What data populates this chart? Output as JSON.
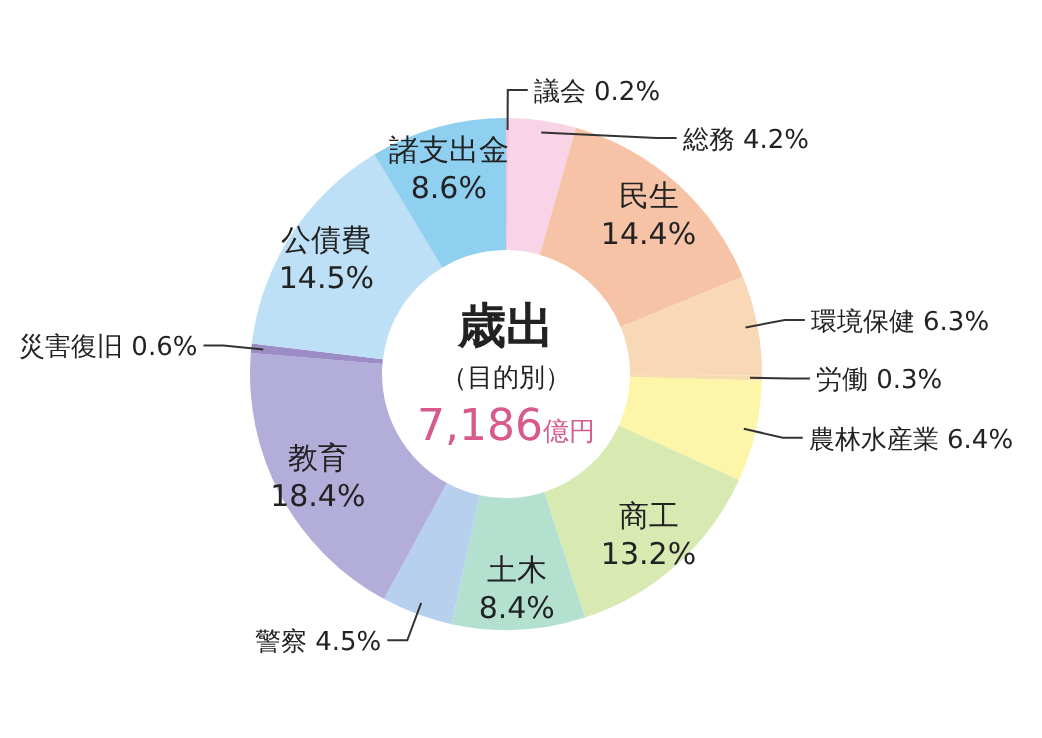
{
  "chart_data": {
    "type": "donut",
    "title": "歳出",
    "subtitle": "（目的別）",
    "annotations": [
      "7,186億円"
    ],
    "categories": [
      "議会",
      "総務",
      "民生",
      "環境保健",
      "労働",
      "農林水産業",
      "商工",
      "土木",
      "警察",
      "教育",
      "災害復旧",
      "公債費",
      "諸支出金"
    ],
    "values": [
      0.2,
      4.2,
      14.4,
      6.3,
      0.3,
      6.4,
      13.2,
      8.4,
      4.5,
      18.4,
      0.6,
      14.5,
      8.6
    ],
    "value_labels": [
      "0.2%",
      "4.2%",
      "14.4%",
      "6.3%",
      "0.3%",
      "6.4%",
      "13.2%",
      "8.4%",
      "4.5%",
      "18.4%",
      "0.6%",
      "14.5%",
      "8.6%"
    ],
    "colors": [
      "#f4c6dc",
      "#f8d4e6",
      "#f6c3a6",
      "#f9d8b8",
      "#f6dcae",
      "#fdf6a8",
      "#d9e9b2",
      "#b3e0cf",
      "#b6d0ee",
      "#b2aed9",
      "#9b8cc6",
      "#bde0f6",
      "#8fd0f1"
    ]
  }
}
